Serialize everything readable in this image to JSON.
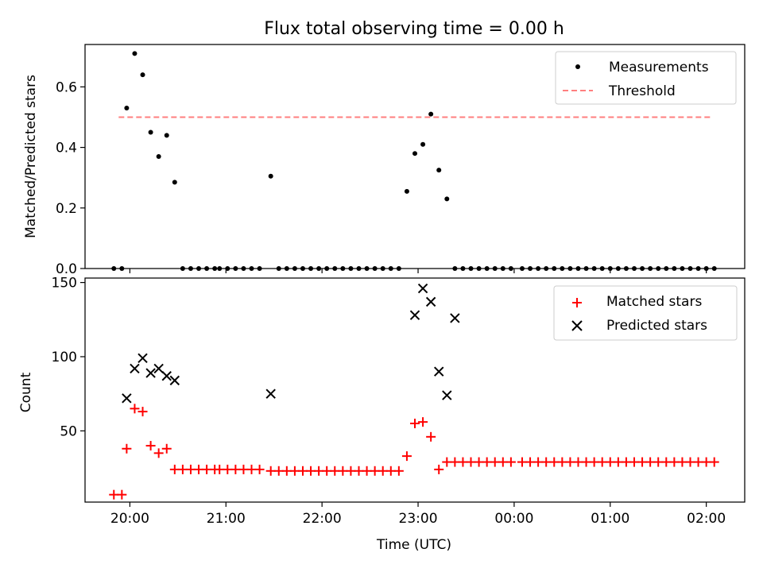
{
  "figure": {
    "title": "Flux total observing time = 0.00 h"
  },
  "chart_data": [
    {
      "type": "scatter",
      "panel": "top",
      "title": "Flux total observing time = 0.00 h",
      "xlabel": "",
      "ylabel": "Matched/Predicted stars",
      "xlim": [
        "19:32",
        "02:24"
      ],
      "ylim": [
        0,
        0.74
      ],
      "yticks": [
        0.0,
        0.2,
        0.4,
        0.6
      ],
      "ytick_labels": [
        "0.0",
        "0.2",
        "0.4",
        "0.6"
      ],
      "legend_position": "upper right",
      "threshold": {
        "name": "Threshold",
        "value": 0.5,
        "x_range": [
          "19:53",
          "02:03"
        ],
        "color": "#ff7f7f",
        "style": "dashed"
      },
      "series": [
        {
          "name": "Measurements",
          "color": "#000000",
          "marker": "dot",
          "x": [
            "19:50",
            "19:55",
            "19:58",
            "20:03",
            "20:08",
            "20:13",
            "20:18",
            "20:23",
            "20:28",
            "20:33",
            "20:38",
            "20:43",
            "20:48",
            "20:53",
            "20:56",
            "21:01",
            "21:06",
            "21:11",
            "21:16",
            "21:21",
            "21:28",
            "21:33",
            "21:38",
            "21:43",
            "21:48",
            "21:53",
            "21:58",
            "22:03",
            "22:08",
            "22:13",
            "22:18",
            "22:23",
            "22:28",
            "22:33",
            "22:38",
            "22:43",
            "22:48",
            "22:53",
            "22:58",
            "23:03",
            "23:08",
            "23:13",
            "23:18",
            "23:23",
            "23:28",
            "23:33",
            "23:38",
            "23:43",
            "23:48",
            "23:53",
            "23:58",
            "00:05",
            "00:10",
            "00:15",
            "00:20",
            "00:25",
            "00:30",
            "00:35",
            "00:40",
            "00:45",
            "00:50",
            "00:55",
            "01:00",
            "01:05",
            "01:10",
            "01:15",
            "01:20",
            "01:25",
            "01:30",
            "01:35",
            "01:40",
            "01:45",
            "01:50",
            "01:55",
            "02:00",
            "02:05"
          ],
          "y": [
            0,
            0,
            0.53,
            0.71,
            0.64,
            0.45,
            0.37,
            0.44,
            0.285,
            0,
            0,
            0,
            0,
            0,
            0,
            0,
            0,
            0,
            0,
            0,
            0.305,
            0,
            0,
            0,
            0,
            0,
            0,
            0,
            0,
            0,
            0,
            0,
            0,
            0,
            0,
            0,
            0,
            0.255,
            0.38,
            0.41,
            0.51,
            0.325,
            0.23,
            0,
            0,
            0,
            0,
            0,
            0,
            0,
            0,
            0,
            0,
            0,
            0,
            0,
            0,
            0,
            0,
            0,
            0,
            0,
            0,
            0,
            0,
            0,
            0,
            0,
            0,
            0,
            0,
            0,
            0,
            0,
            0,
            0
          ]
        }
      ]
    },
    {
      "type": "scatter",
      "panel": "bottom",
      "xlabel": "Time (UTC)",
      "ylabel": "Count",
      "xlim": [
        "19:32",
        "02:24"
      ],
      "xticks": [
        "20:00",
        "21:00",
        "22:00",
        "23:00",
        "00:00",
        "01:00",
        "02:00"
      ],
      "ylim": [
        2,
        153
      ],
      "yticks": [
        50,
        100,
        150
      ],
      "ytick_labels": [
        "50",
        "100",
        "150"
      ],
      "legend_position": "upper right",
      "series": [
        {
          "name": "Matched stars",
          "color": "#ff0000",
          "marker": "plus",
          "x": [
            "19:50",
            "19:55",
            "19:58",
            "20:03",
            "20:08",
            "20:13",
            "20:18",
            "20:23",
            "20:28",
            "20:33",
            "20:38",
            "20:43",
            "20:48",
            "20:53",
            "20:56",
            "21:01",
            "21:06",
            "21:11",
            "21:16",
            "21:21",
            "21:28",
            "21:33",
            "21:38",
            "21:43",
            "21:48",
            "21:53",
            "21:58",
            "22:03",
            "22:08",
            "22:13",
            "22:18",
            "22:23",
            "22:28",
            "22:33",
            "22:38",
            "22:43",
            "22:48",
            "22:53",
            "22:58",
            "23:03",
            "23:08",
            "23:13",
            "23:18",
            "23:23",
            "23:28",
            "23:33",
            "23:38",
            "23:43",
            "23:48",
            "23:53",
            "23:58",
            "00:05",
            "00:10",
            "00:15",
            "00:20",
            "00:25",
            "00:30",
            "00:35",
            "00:40",
            "00:45",
            "00:50",
            "00:55",
            "01:00",
            "01:05",
            "01:10",
            "01:15",
            "01:20",
            "01:25",
            "01:30",
            "01:35",
            "01:40",
            "01:45",
            "01:50",
            "01:55",
            "02:00",
            "02:05"
          ],
          "y": [
            7,
            7,
            38,
            65,
            63,
            40,
            35,
            38,
            24,
            24,
            24,
            24,
            24,
            24,
            24,
            24,
            24,
            24,
            24,
            24,
            23,
            23,
            23,
            23,
            23,
            23,
            23,
            23,
            23,
            23,
            23,
            23,
            23,
            23,
            23,
            23,
            23,
            33,
            55,
            56,
            46,
            24,
            29,
            29,
            29,
            29,
            29,
            29,
            29,
            29,
            29,
            29,
            29,
            29,
            29,
            29,
            29,
            29,
            29,
            29,
            29,
            29,
            29,
            29,
            29,
            29,
            29,
            29,
            29,
            29,
            29,
            29,
            29,
            29,
            29,
            29
          ]
        },
        {
          "name": "Predicted stars",
          "color": "#000000",
          "marker": "x",
          "x": [
            "19:58",
            "20:03",
            "20:08",
            "20:13",
            "20:18",
            "20:23",
            "20:28",
            "21:28",
            "22:58",
            "23:03",
            "23:08",
            "23:13",
            "23:18",
            "23:23"
          ],
          "y": [
            72,
            92,
            99,
            89,
            92,
            87,
            84,
            75,
            128,
            146,
            137,
            90,
            74,
            126
          ]
        }
      ]
    }
  ]
}
